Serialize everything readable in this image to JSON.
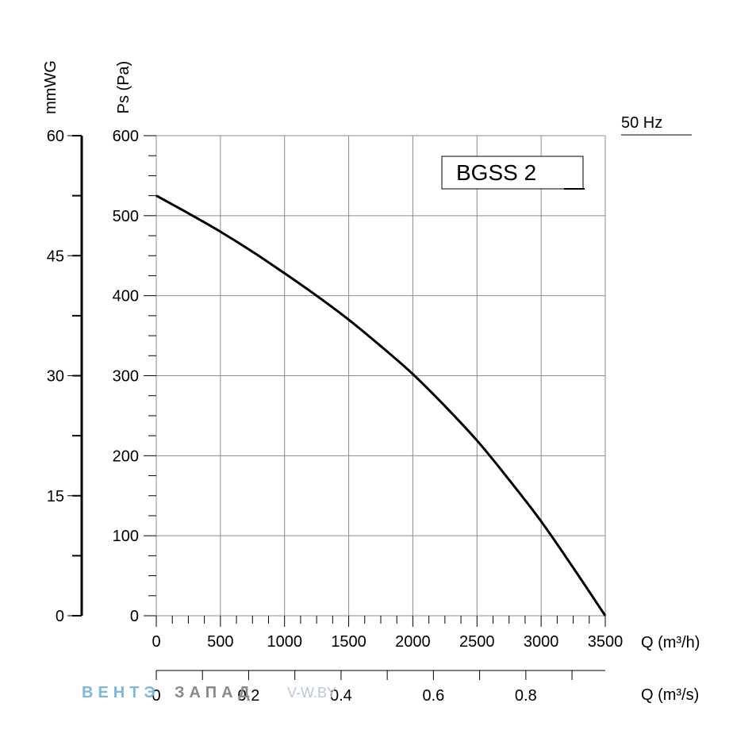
{
  "chart_data": {
    "type": "line",
    "model_label": "BGSS 2",
    "frequency_label": "50 Hz",
    "xlabel": "Q (m³/h)",
    "xlabel_secondary": "Q (m³/s)",
    "ylabel": "Ps (Pa)",
    "ylabel_secondary": "mmWG",
    "xlim": [
      0,
      3500
    ],
    "ylim": [
      0,
      600
    ],
    "xticks": [
      "0",
      "500",
      "1000",
      "1500",
      "2000",
      "2500",
      "3000",
      "3500"
    ],
    "yticks": [
      "0",
      "100",
      "200",
      "300",
      "400",
      "500",
      "600"
    ],
    "secondary_x": {
      "ticks": [
        "0",
        "0.2",
        "0.4",
        "0.6",
        "0.8"
      ],
      "range": [
        0,
        0.972
      ]
    },
    "secondary_y": {
      "ticks": [
        "0",
        "15",
        "30",
        "45",
        "60"
      ],
      "range": [
        0,
        60
      ]
    },
    "grid": true,
    "series": [
      {
        "x": [
          0,
          250,
          500,
          750,
          1000,
          1250,
          1500,
          1750,
          2000,
          2250,
          2500,
          2750,
          3000,
          3250,
          3500
        ],
        "values": [
          525,
          503,
          480,
          455,
          428,
          400,
          370,
          337,
          302,
          262,
          219,
          170,
          118,
          60,
          0
        ]
      }
    ]
  },
  "watermark": {
    "part1": "ВЕНТЭ",
    "part2": "ЗАПАД",
    "url": "V-W.BY"
  }
}
